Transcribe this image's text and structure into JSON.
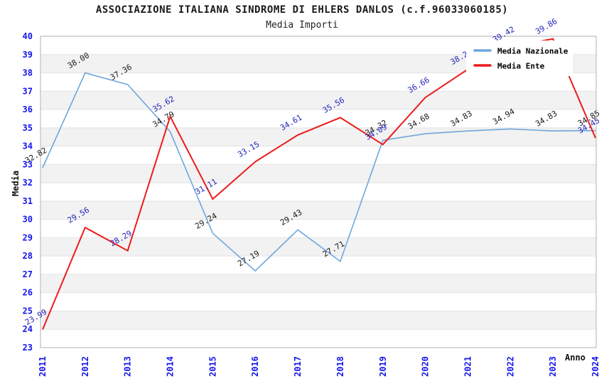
{
  "chart_data": {
    "type": "line",
    "title": "ASSOCIAZIONE ITALIANA SINDROME DI EHLERS DANLOS (c.f.96033060185)",
    "subtitle": "Media Importi",
    "xlabel": "Anno",
    "ylabel": "Media",
    "ylim": [
      23,
      40
    ],
    "ytick_step": 1,
    "categories": [
      "2011",
      "2012",
      "2013",
      "2014",
      "2015",
      "2016",
      "2017",
      "2018",
      "2019",
      "2020",
      "2021",
      "2022",
      "2023",
      "2024"
    ],
    "series": [
      {
        "name": "Media Nazionale",
        "color": "#6fa7dc",
        "label_color": "#1a1a1a",
        "line_width": 1.6,
        "values": [
          32.82,
          38.0,
          37.36,
          34.79,
          29.24,
          27.19,
          29.43,
          27.71,
          34.32,
          34.68,
          34.83,
          34.94,
          34.83,
          34.85
        ]
      },
      {
        "name": "Media Ente",
        "color": "#ec1c1c",
        "label_color": "#2525bd",
        "line_width": 2,
        "values": [
          23.99,
          29.56,
          28.29,
          35.62,
          31.11,
          33.15,
          34.61,
          35.56,
          34.09,
          36.66,
          38.2,
          39.42,
          39.86,
          34.45
        ]
      }
    ],
    "legend": {
      "position": "top-right",
      "entries": [
        "Media Nazionale",
        "Media Ente"
      ]
    },
    "grid": {
      "horizontal_gridlines": true,
      "alternating_bands": true,
      "legend_opaque": true
    }
  },
  "style": {
    "axis_tick_color": "#1515ee",
    "grid_color": "#e3e3e3",
    "band_color": "#f2f2f2",
    "border_color": "#b2b2b2",
    "axis_title_color": "#111111",
    "legend_bg": "#ffffff",
    "legend_text_color": "#000000"
  }
}
